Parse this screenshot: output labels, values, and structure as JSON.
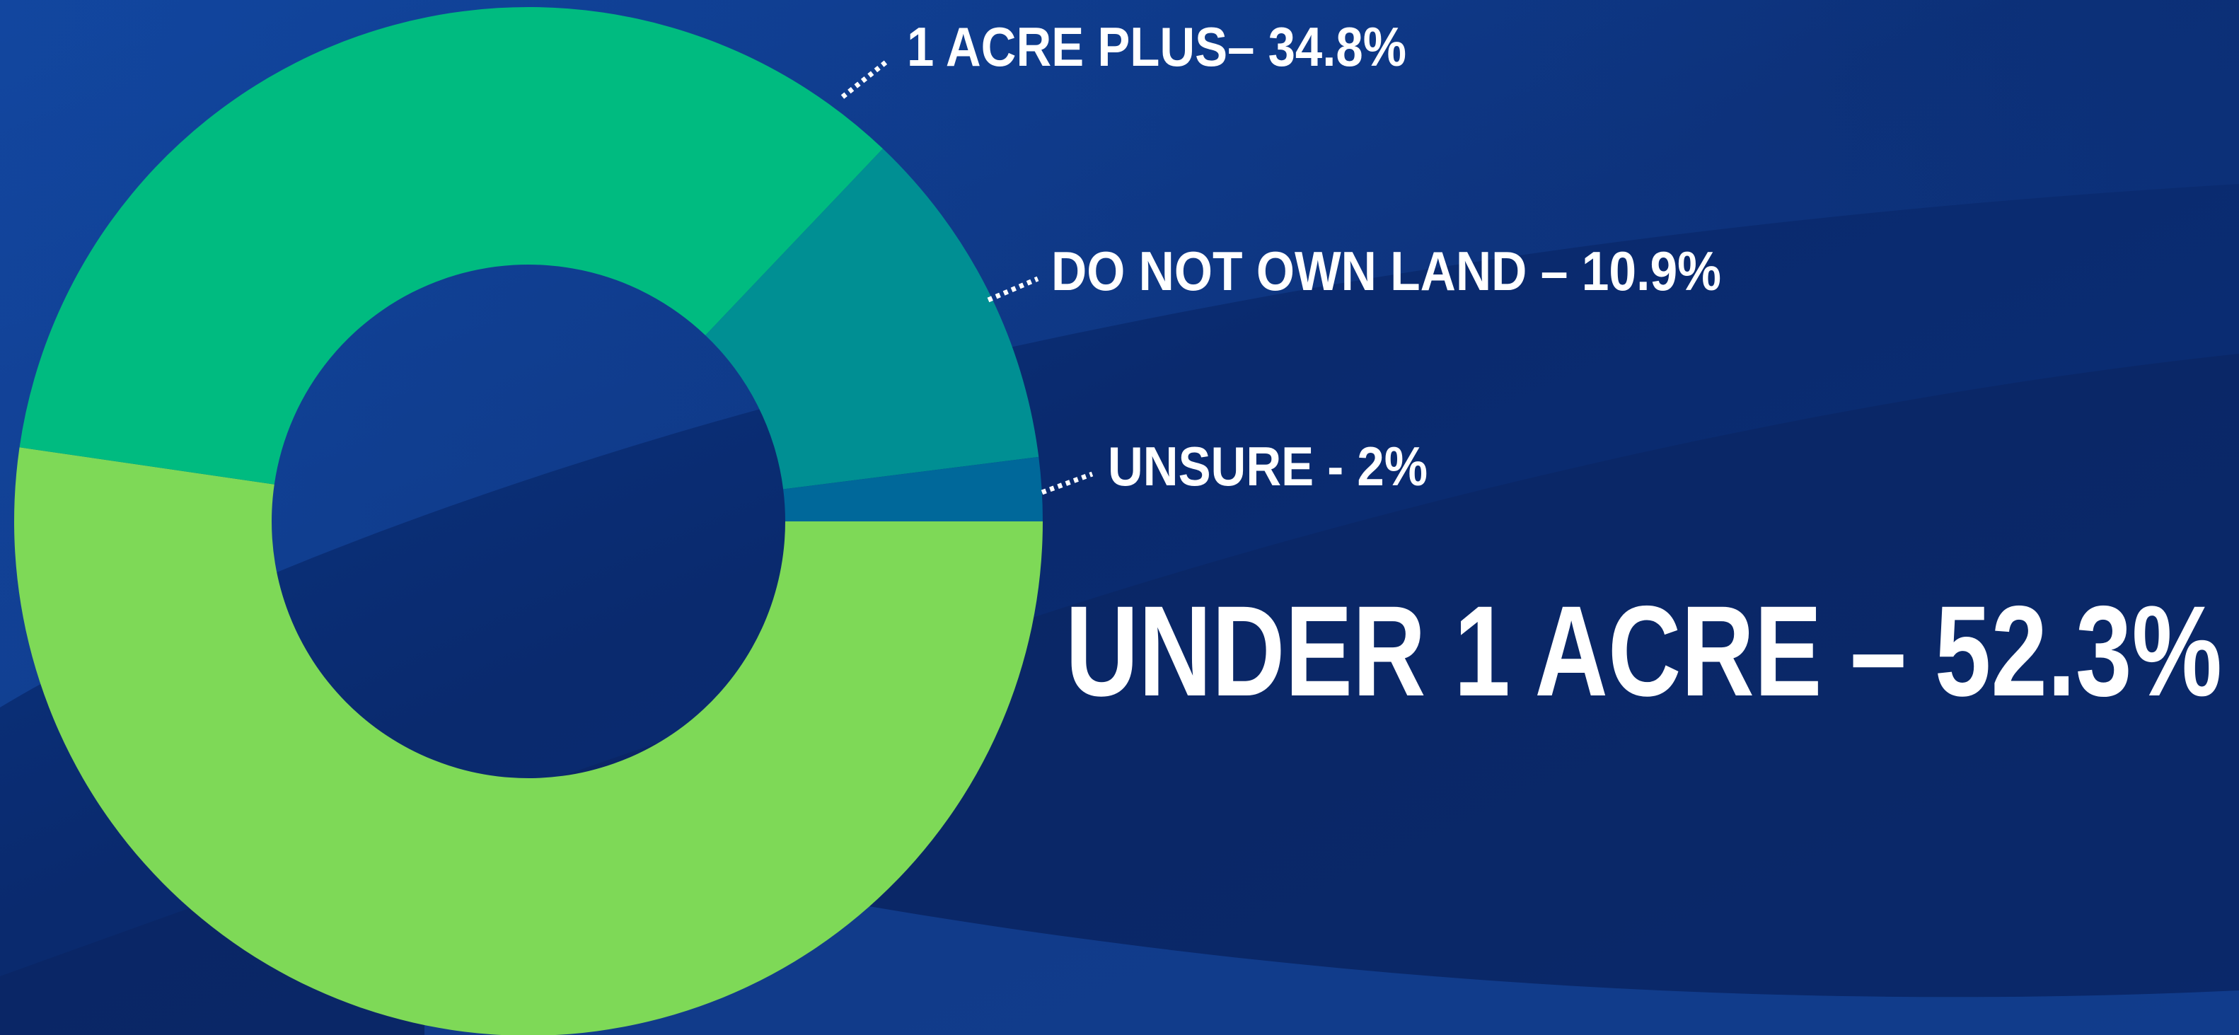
{
  "chart_data": {
    "type": "donut",
    "values": [
      52.3,
      34.8,
      10.9,
      2
    ],
    "value_labels": [
      "UNDER 1 ACRE – 52.3%",
      "1 ACRE PLUS– 34.8%",
      "DO NOT OWN LAND – 10.9%",
      "UNSURE - 2%"
    ],
    "colors": [
      "#7ed957",
      "#00bb80",
      "#008f93",
      "#00689a"
    ]
  }
}
